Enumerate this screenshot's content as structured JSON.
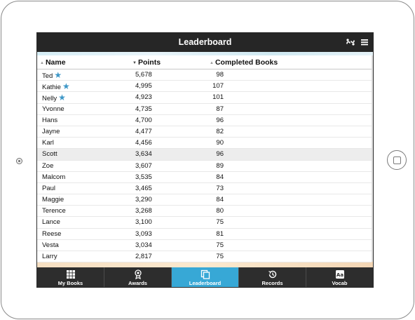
{
  "header": {
    "title": "Leaderboard",
    "icons": [
      "share-link-icon",
      "menu-icon"
    ]
  },
  "table": {
    "columns": {
      "name": "Name",
      "points": "Points",
      "books": "Completed Books"
    },
    "sorted_by": "Points",
    "rows": [
      {
        "name": "Ted",
        "star": true,
        "points": "5,678",
        "books": "98"
      },
      {
        "name": "Kathie",
        "star": true,
        "points": "4,995",
        "books": "107"
      },
      {
        "name": "Nelly",
        "star": true,
        "points": "4,923",
        "books": "101"
      },
      {
        "name": "Yvonne",
        "star": false,
        "points": "4,735",
        "books": "87"
      },
      {
        "name": "Hans",
        "star": false,
        "points": "4,700",
        "books": "96"
      },
      {
        "name": "Jayne",
        "star": false,
        "points": "4,477",
        "books": "82"
      },
      {
        "name": "Karl",
        "star": false,
        "points": "4,456",
        "books": "90"
      },
      {
        "name": "Scott",
        "star": false,
        "points": "3,634",
        "books": "96",
        "highlighted": true
      },
      {
        "name": "Zoe",
        "star": false,
        "points": "3,607",
        "books": "89"
      },
      {
        "name": "Malcom",
        "star": false,
        "points": "3,535",
        "books": "84"
      },
      {
        "name": "Paul",
        "star": false,
        "points": "3,465",
        "books": "73"
      },
      {
        "name": "Maggie",
        "star": false,
        "points": "3,290",
        "books": "84"
      },
      {
        "name": "Terence",
        "star": false,
        "points": "3,268",
        "books": "80"
      },
      {
        "name": "Lance",
        "star": false,
        "points": "3,100",
        "books": "75"
      },
      {
        "name": "Reese",
        "star": false,
        "points": "3,093",
        "books": "81"
      },
      {
        "name": "Vesta",
        "star": false,
        "points": "3,034",
        "books": "75"
      },
      {
        "name": "Larry",
        "star": false,
        "points": "2,817",
        "books": "75"
      }
    ]
  },
  "tabs": [
    {
      "label": "My Books",
      "icon": "grid-icon",
      "active": false
    },
    {
      "label": "Awards",
      "icon": "medal-icon",
      "active": false
    },
    {
      "label": "Leaderboard",
      "icon": "leaderboard-icon",
      "active": true
    },
    {
      "label": "Records",
      "icon": "history-clock-icon",
      "active": false
    },
    {
      "label": "Vocab",
      "icon": "vocab-icon",
      "active": false
    }
  ],
  "colors": {
    "header_bg": "#262626",
    "tab_active": "#37a8d6",
    "star": "#3d97c7"
  }
}
